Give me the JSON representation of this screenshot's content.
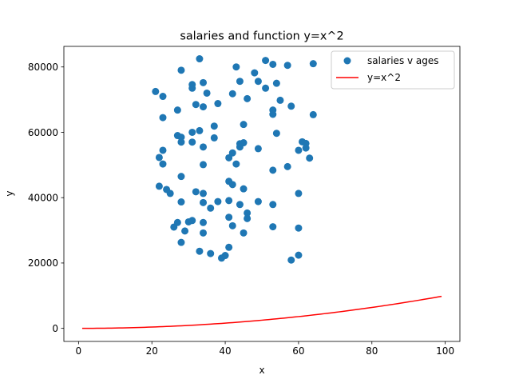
{
  "chart_data": {
    "type": "scatter",
    "title": "salaries and function y=x^2",
    "xlabel": "x",
    "ylabel": "y",
    "xlim": [
      -4,
      104
    ],
    "ylim": [
      -4000,
      86300
    ],
    "xticks": [
      0,
      20,
      40,
      60,
      80,
      100
    ],
    "yticks": [
      0,
      20000,
      40000,
      60000,
      80000
    ],
    "grid": false,
    "legend_position": "top-right",
    "series": [
      {
        "name": "salaries v ages",
        "kind": "scatter",
        "color": "#1f77b4",
        "points": [
          [
            21,
            72500
          ],
          [
            22,
            52300
          ],
          [
            22,
            43500
          ],
          [
            23,
            71000
          ],
          [
            23,
            64500
          ],
          [
            23,
            54500
          ],
          [
            23,
            50300
          ],
          [
            24,
            42500
          ],
          [
            25,
            41300
          ],
          [
            26,
            31000
          ],
          [
            27,
            66800
          ],
          [
            27,
            59000
          ],
          [
            27,
            32400
          ],
          [
            28,
            79000
          ],
          [
            28,
            58500
          ],
          [
            28,
            57000
          ],
          [
            28,
            46500
          ],
          [
            28,
            38700
          ],
          [
            28,
            26300
          ],
          [
            29,
            29800
          ],
          [
            30,
            32600
          ],
          [
            31,
            74600
          ],
          [
            31,
            73500
          ],
          [
            31,
            60000
          ],
          [
            31,
            57000
          ],
          [
            31,
            33000
          ],
          [
            32,
            68500
          ],
          [
            32,
            41800
          ],
          [
            33,
            82500
          ],
          [
            33,
            60500
          ],
          [
            33,
            23600
          ],
          [
            34,
            75200
          ],
          [
            34,
            67800
          ],
          [
            34,
            55500
          ],
          [
            34,
            50100
          ],
          [
            34,
            41300
          ],
          [
            34,
            38500
          ],
          [
            34,
            32400
          ],
          [
            34,
            29200
          ],
          [
            35,
            72000
          ],
          [
            36,
            36800
          ],
          [
            36,
            22900
          ],
          [
            37,
            61900
          ],
          [
            37,
            58300
          ],
          [
            38,
            68800
          ],
          [
            38,
            38800
          ],
          [
            39,
            21500
          ],
          [
            40,
            22300
          ],
          [
            41,
            52200
          ],
          [
            41,
            45000
          ],
          [
            41,
            39100
          ],
          [
            41,
            34000
          ],
          [
            41,
            24800
          ],
          [
            42,
            71800
          ],
          [
            42,
            53700
          ],
          [
            42,
            44000
          ],
          [
            42,
            31400
          ],
          [
            43,
            50300
          ],
          [
            43,
            80000
          ],
          [
            44,
            75600
          ],
          [
            44,
            56500
          ],
          [
            44,
            55500
          ],
          [
            44,
            37900
          ],
          [
            45,
            62400
          ],
          [
            45,
            56800
          ],
          [
            45,
            42700
          ],
          [
            45,
            29200
          ],
          [
            46,
            70300
          ],
          [
            46,
            35300
          ],
          [
            46,
            33600
          ],
          [
            48,
            78200
          ],
          [
            49,
            75600
          ],
          [
            49,
            55000
          ],
          [
            49,
            38800
          ],
          [
            51,
            82000
          ],
          [
            51,
            73500
          ],
          [
            53,
            80800
          ],
          [
            53,
            66800
          ],
          [
            53,
            65500
          ],
          [
            53,
            48400
          ],
          [
            53,
            37900
          ],
          [
            53,
            31100
          ],
          [
            54,
            75000
          ],
          [
            54,
            59700
          ],
          [
            55,
            69800
          ],
          [
            57,
            80500
          ],
          [
            57,
            49500
          ],
          [
            58,
            68000
          ],
          [
            58,
            20900
          ],
          [
            60,
            54500
          ],
          [
            60,
            41300
          ],
          [
            60,
            30700
          ],
          [
            60,
            22400
          ],
          [
            61,
            57100
          ],
          [
            62,
            56600
          ],
          [
            62,
            55200
          ],
          [
            63,
            52100
          ],
          [
            64,
            81000
          ],
          [
            64,
            65400
          ]
        ]
      },
      {
        "name": "y=x^2",
        "kind": "line",
        "color": "#ff0000",
        "function": "x^2",
        "x_range": [
          1,
          99
        ]
      }
    ]
  }
}
